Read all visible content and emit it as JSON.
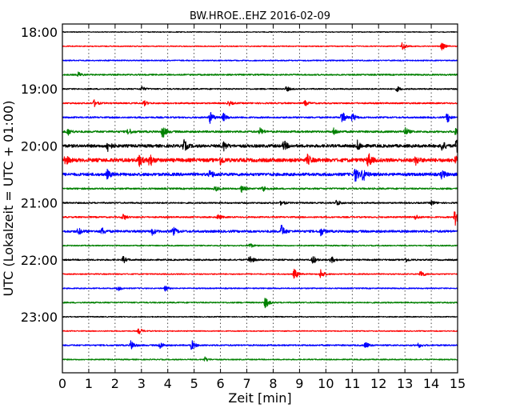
{
  "chart_data": {
    "type": "line",
    "title": "BW.HROE..EHZ 2016-02-09",
    "xlabel": "Zeit  [min]",
    "ylabel": "UTC (Lokalzeit = UTC + 01:00)",
    "xlim": [
      0,
      15
    ],
    "x_ticks": [
      "0",
      "1",
      "2",
      "3",
      "4",
      "5",
      "6",
      "7",
      "8",
      "9",
      "10",
      "11",
      "12",
      "13",
      "14",
      "15"
    ],
    "y_ticks": [
      {
        "label": "18:00",
        "row": 0
      },
      {
        "label": "19:00",
        "row": 4
      },
      {
        "label": "20:00",
        "row": 8
      },
      {
        "label": "21:00",
        "row": 12
      },
      {
        "label": "22:00",
        "row": 16
      },
      {
        "label": "23:00",
        "row": 20
      }
    ],
    "grid": "vertical dotted at every minute",
    "row_minutes": 15,
    "colors": [
      "#000000",
      "#ff0000",
      "#0000ff",
      "#008000"
    ],
    "series": [
      {
        "start": "18:00",
        "color": "#000000",
        "base": 0.5,
        "events": []
      },
      {
        "start": "18:15",
        "color": "#ff0000",
        "base": 0.6,
        "events": [
          {
            "t": 12.9,
            "a": 5
          },
          {
            "t": 14.4,
            "a": 5
          }
        ]
      },
      {
        "start": "18:30",
        "color": "#0000ff",
        "base": 0.7,
        "events": []
      },
      {
        "start": "18:45",
        "color": "#008000",
        "base": 0.9,
        "events": [
          {
            "t": 0.6,
            "a": 3
          }
        ]
      },
      {
        "start": "19:00",
        "color": "#000000",
        "base": 0.8,
        "events": [
          {
            "t": 3.0,
            "a": 3
          },
          {
            "t": 8.5,
            "a": 3
          },
          {
            "t": 12.7,
            "a": 3
          }
        ]
      },
      {
        "start": "19:15",
        "color": "#ff0000",
        "base": 0.9,
        "events": [
          {
            "t": 1.2,
            "a": 4
          },
          {
            "t": 3.1,
            "a": 3
          },
          {
            "t": 6.3,
            "a": 3
          },
          {
            "t": 9.2,
            "a": 3
          }
        ]
      },
      {
        "start": "19:30",
        "color": "#0000ff",
        "base": 1.0,
        "events": [
          {
            "t": 5.6,
            "a": 7
          },
          {
            "t": 6.1,
            "a": 5
          },
          {
            "t": 10.6,
            "a": 8
          },
          {
            "t": 11.0,
            "a": 5
          },
          {
            "t": 14.6,
            "a": 6
          }
        ]
      },
      {
        "start": "19:45",
        "color": "#008000",
        "base": 1.2,
        "events": [
          {
            "t": 0.2,
            "a": 4
          },
          {
            "t": 2.5,
            "a": 4
          },
          {
            "t": 3.8,
            "a": 8
          },
          {
            "t": 7.5,
            "a": 4
          },
          {
            "t": 10.3,
            "a": 4
          },
          {
            "t": 13.0,
            "a": 5
          },
          {
            "t": 14.9,
            "a": 4
          }
        ]
      },
      {
        "start": "20:00",
        "color": "#000000",
        "base": 1.8,
        "events": [
          {
            "t": 1.7,
            "a": 7
          },
          {
            "t": 4.6,
            "a": 7
          },
          {
            "t": 6.1,
            "a": 6
          },
          {
            "t": 8.4,
            "a": 6
          },
          {
            "t": 11.2,
            "a": 6
          },
          {
            "t": 14.4,
            "a": 6
          },
          {
            "t": 14.95,
            "a": 9
          }
        ]
      },
      {
        "start": "20:15",
        "color": "#ff0000",
        "base": 2.2,
        "events": [
          {
            "t": 0.1,
            "a": 6
          },
          {
            "t": 2.9,
            "a": 7
          },
          {
            "t": 3.3,
            "a": 8
          },
          {
            "t": 6.0,
            "a": 5
          },
          {
            "t": 9.3,
            "a": 6
          },
          {
            "t": 11.6,
            "a": 9
          },
          {
            "t": 13.4,
            "a": 5
          },
          {
            "t": 14.9,
            "a": 5
          }
        ]
      },
      {
        "start": "20:30",
        "color": "#0000ff",
        "base": 1.8,
        "events": [
          {
            "t": 1.7,
            "a": 5
          },
          {
            "t": 5.6,
            "a": 5
          },
          {
            "t": 11.1,
            "a": 9
          },
          {
            "t": 11.4,
            "a": 8
          },
          {
            "t": 14.4,
            "a": 5
          }
        ]
      },
      {
        "start": "20:45",
        "color": "#008000",
        "base": 1.0,
        "events": [
          {
            "t": 5.8,
            "a": 3
          },
          {
            "t": 6.8,
            "a": 4
          },
          {
            "t": 7.6,
            "a": 4
          }
        ]
      },
      {
        "start": "21:00",
        "color": "#000000",
        "base": 0.9,
        "events": [
          {
            "t": 8.3,
            "a": 3
          },
          {
            "t": 10.4,
            "a": 4
          },
          {
            "t": 14.0,
            "a": 3
          }
        ]
      },
      {
        "start": "21:15",
        "color": "#ff0000",
        "base": 0.9,
        "events": [
          {
            "t": 2.3,
            "a": 4
          },
          {
            "t": 5.9,
            "a": 3
          },
          {
            "t": 13.4,
            "a": 3
          },
          {
            "t": 14.9,
            "a": 11
          }
        ]
      },
      {
        "start": "21:30",
        "color": "#0000ff",
        "base": 1.4,
        "events": [
          {
            "t": 0.6,
            "a": 4
          },
          {
            "t": 1.5,
            "a": 4
          },
          {
            "t": 3.4,
            "a": 4
          },
          {
            "t": 4.2,
            "a": 5
          },
          {
            "t": 8.3,
            "a": 8
          },
          {
            "t": 9.8,
            "a": 5
          }
        ]
      },
      {
        "start": "21:45",
        "color": "#008000",
        "base": 0.7,
        "events": [
          {
            "t": 7.1,
            "a": 3
          }
        ]
      },
      {
        "start": "22:00",
        "color": "#000000",
        "base": 0.9,
        "events": [
          {
            "t": 2.3,
            "a": 4
          },
          {
            "t": 7.1,
            "a": 6
          },
          {
            "t": 9.5,
            "a": 5
          },
          {
            "t": 10.2,
            "a": 4
          },
          {
            "t": 13.0,
            "a": 3
          }
        ]
      },
      {
        "start": "22:15",
        "color": "#ff0000",
        "base": 0.7,
        "events": [
          {
            "t": 8.8,
            "a": 7
          },
          {
            "t": 9.8,
            "a": 6
          },
          {
            "t": 13.6,
            "a": 5
          }
        ]
      },
      {
        "start": "22:30",
        "color": "#0000ff",
        "base": 0.7,
        "events": [
          {
            "t": 2.1,
            "a": 3
          },
          {
            "t": 3.9,
            "a": 3
          }
        ]
      },
      {
        "start": "22:45",
        "color": "#008000",
        "base": 0.8,
        "events": [
          {
            "t": 7.7,
            "a": 7
          }
        ]
      },
      {
        "start": "23:00",
        "color": "#000000",
        "base": 0.6,
        "events": []
      },
      {
        "start": "23:15",
        "color": "#ff0000",
        "base": 0.6,
        "events": [
          {
            "t": 2.9,
            "a": 4
          }
        ]
      },
      {
        "start": "23:30",
        "color": "#0000ff",
        "base": 0.9,
        "events": [
          {
            "t": 2.6,
            "a": 6
          },
          {
            "t": 3.7,
            "a": 4
          },
          {
            "t": 4.9,
            "a": 6
          },
          {
            "t": 11.5,
            "a": 4
          },
          {
            "t": 13.5,
            "a": 3
          }
        ]
      },
      {
        "start": "23:45",
        "color": "#008000",
        "base": 0.7,
        "events": [
          {
            "t": 5.4,
            "a": 3
          }
        ]
      }
    ]
  }
}
